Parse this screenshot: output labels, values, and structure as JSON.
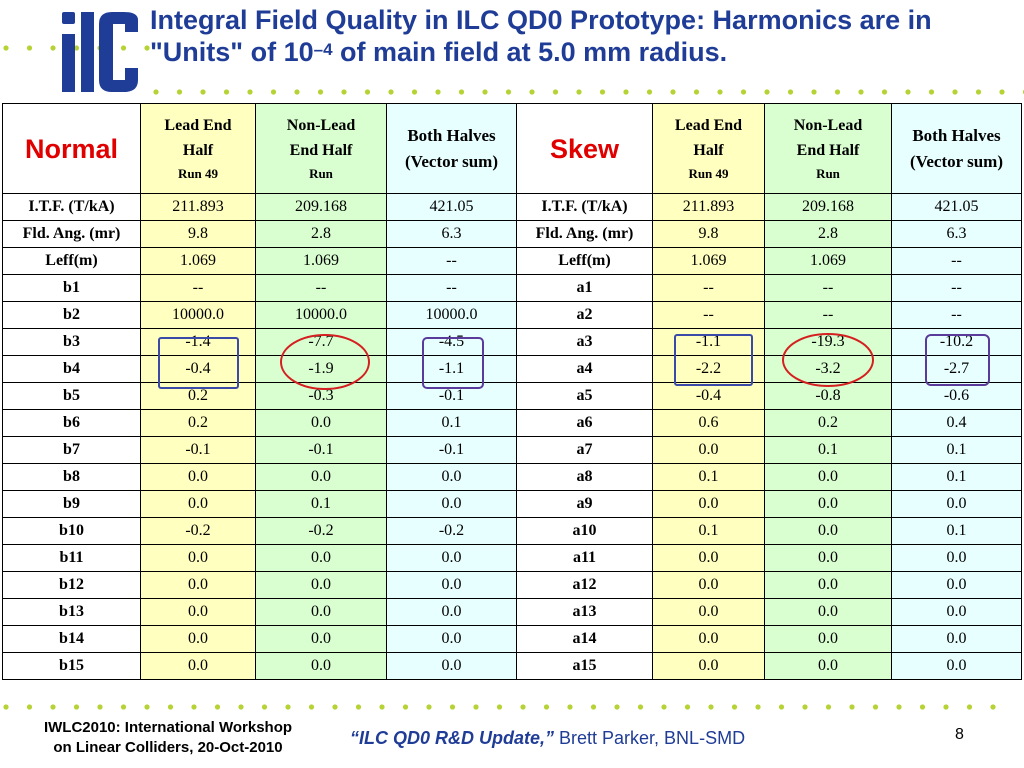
{
  "slide": {
    "title_part1": "Integral Field Quality in ILC QD0 Prototype: Harmonics are in \"Units\" of 10",
    "title_sup": "–4",
    "title_part2": " of main field at 5.0 mm radius.",
    "logo_text": "ilc"
  },
  "colors": {
    "title": "#1f3c96",
    "section_label": "#e00000",
    "lead_end": "#ffffbf",
    "non_lead_end": "#d9ffd1",
    "both_halves": "#e8ffff",
    "dots": "#b5d334",
    "circle_red": "#d42020",
    "box_blue": "#3b4aa8",
    "box_purple": "#5a3a9a"
  },
  "headers": {
    "lead_end_line1": "Lead End",
    "lead_end_line2": "Half",
    "lead_end_run": "Run 49",
    "non_lead_line1": "Non-Lead",
    "non_lead_line2": "End Half",
    "non_lead_run": "Run",
    "both_line1": "Both Halves",
    "both_line2": "(Vector sum)"
  },
  "normal": {
    "label": "Normal",
    "rows": [
      {
        "label": "I.T.F. (T/kA)",
        "lead": "211.893",
        "nonlead": "209.168",
        "both": "421.05"
      },
      {
        "label": "Fld. Ang. (mr)",
        "lead": "9.8",
        "nonlead": "2.8",
        "both": "6.3"
      },
      {
        "label": "Leff(m)",
        "lead": "1.069",
        "nonlead": "1.069",
        "both": "--"
      },
      {
        "label": "b1",
        "lead": "--",
        "nonlead": "--",
        "both": "--"
      },
      {
        "label": "b2",
        "lead": "10000.0",
        "nonlead": "10000.0",
        "both": "10000.0"
      },
      {
        "label": "b3",
        "lead": "-1.4",
        "nonlead": "-7.7",
        "both": "-4.5"
      },
      {
        "label": "b4",
        "lead": "-0.4",
        "nonlead": "-1.9",
        "both": "-1.1"
      },
      {
        "label": "b5",
        "lead": "0.2",
        "nonlead": "-0.3",
        "both": "-0.1"
      },
      {
        "label": "b6",
        "lead": "0.2",
        "nonlead": "0.0",
        "both": "0.1"
      },
      {
        "label": "b7",
        "lead": "-0.1",
        "nonlead": "-0.1",
        "both": "-0.1"
      },
      {
        "label": "b8",
        "lead": "0.0",
        "nonlead": "0.0",
        "both": "0.0"
      },
      {
        "label": "b9",
        "lead": "0.0",
        "nonlead": "0.1",
        "both": "0.0"
      },
      {
        "label": "b10",
        "lead": "-0.2",
        "nonlead": "-0.2",
        "both": "-0.2"
      },
      {
        "label": "b11",
        "lead": "0.0",
        "nonlead": "0.0",
        "both": "0.0"
      },
      {
        "label": "b12",
        "lead": "0.0",
        "nonlead": "0.0",
        "both": "0.0"
      },
      {
        "label": "b13",
        "lead": "0.0",
        "nonlead": "0.0",
        "both": "0.0"
      },
      {
        "label": "b14",
        "lead": "0.0",
        "nonlead": "0.0",
        "both": "0.0"
      },
      {
        "label": "b15",
        "lead": "0.0",
        "nonlead": "0.0",
        "both": "0.0"
      }
    ]
  },
  "skew": {
    "label": "Skew",
    "rows": [
      {
        "label": "I.T.F. (T/kA)",
        "lead": "211.893",
        "nonlead": "209.168",
        "both": "421.05"
      },
      {
        "label": "Fld. Ang. (mr)",
        "lead": "9.8",
        "nonlead": "2.8",
        "both": "6.3"
      },
      {
        "label": "Leff(m)",
        "lead": "1.069",
        "nonlead": "1.069",
        "both": "--"
      },
      {
        "label": "a1",
        "lead": "--",
        "nonlead": "--",
        "both": "--"
      },
      {
        "label": "a2",
        "lead": "--",
        "nonlead": "--",
        "both": "--"
      },
      {
        "label": "a3",
        "lead": "-1.1",
        "nonlead": "-19.3",
        "both": "-10.2"
      },
      {
        "label": "a4",
        "lead": "-2.2",
        "nonlead": "-3.2",
        "both": "-2.7"
      },
      {
        "label": "a5",
        "lead": "-0.4",
        "nonlead": "-0.8",
        "both": "-0.6"
      },
      {
        "label": "a6",
        "lead": "0.6",
        "nonlead": "0.2",
        "both": "0.4"
      },
      {
        "label": "a7",
        "lead": "0.0",
        "nonlead": "0.1",
        "both": "0.1"
      },
      {
        "label": "a8",
        "lead": "0.1",
        "nonlead": "0.0",
        "both": "0.1"
      },
      {
        "label": "a9",
        "lead": "0.0",
        "nonlead": "0.0",
        "both": "0.0"
      },
      {
        "label": "a10",
        "lead": "0.1",
        "nonlead": "0.0",
        "both": "0.1"
      },
      {
        "label": "a11",
        "lead": "0.0",
        "nonlead": "0.0",
        "both": "0.0"
      },
      {
        "label": "a12",
        "lead": "0.0",
        "nonlead": "0.0",
        "both": "0.0"
      },
      {
        "label": "a13",
        "lead": "0.0",
        "nonlead": "0.0",
        "both": "0.0"
      },
      {
        "label": "a14",
        "lead": "0.0",
        "nonlead": "0.0",
        "both": "0.0"
      },
      {
        "label": "a15",
        "lead": "0.0",
        "nonlead": "0.0",
        "both": "0.0"
      }
    ]
  },
  "footer": {
    "left_line1": "IWLC2010: International Workshop",
    "left_line2": "on Linear Colliders,  20-Oct-2010",
    "talk_title": "“ILC QD0 R&D Update,”",
    "author": " Brett Parker, BNL-SMD",
    "page": "8"
  }
}
